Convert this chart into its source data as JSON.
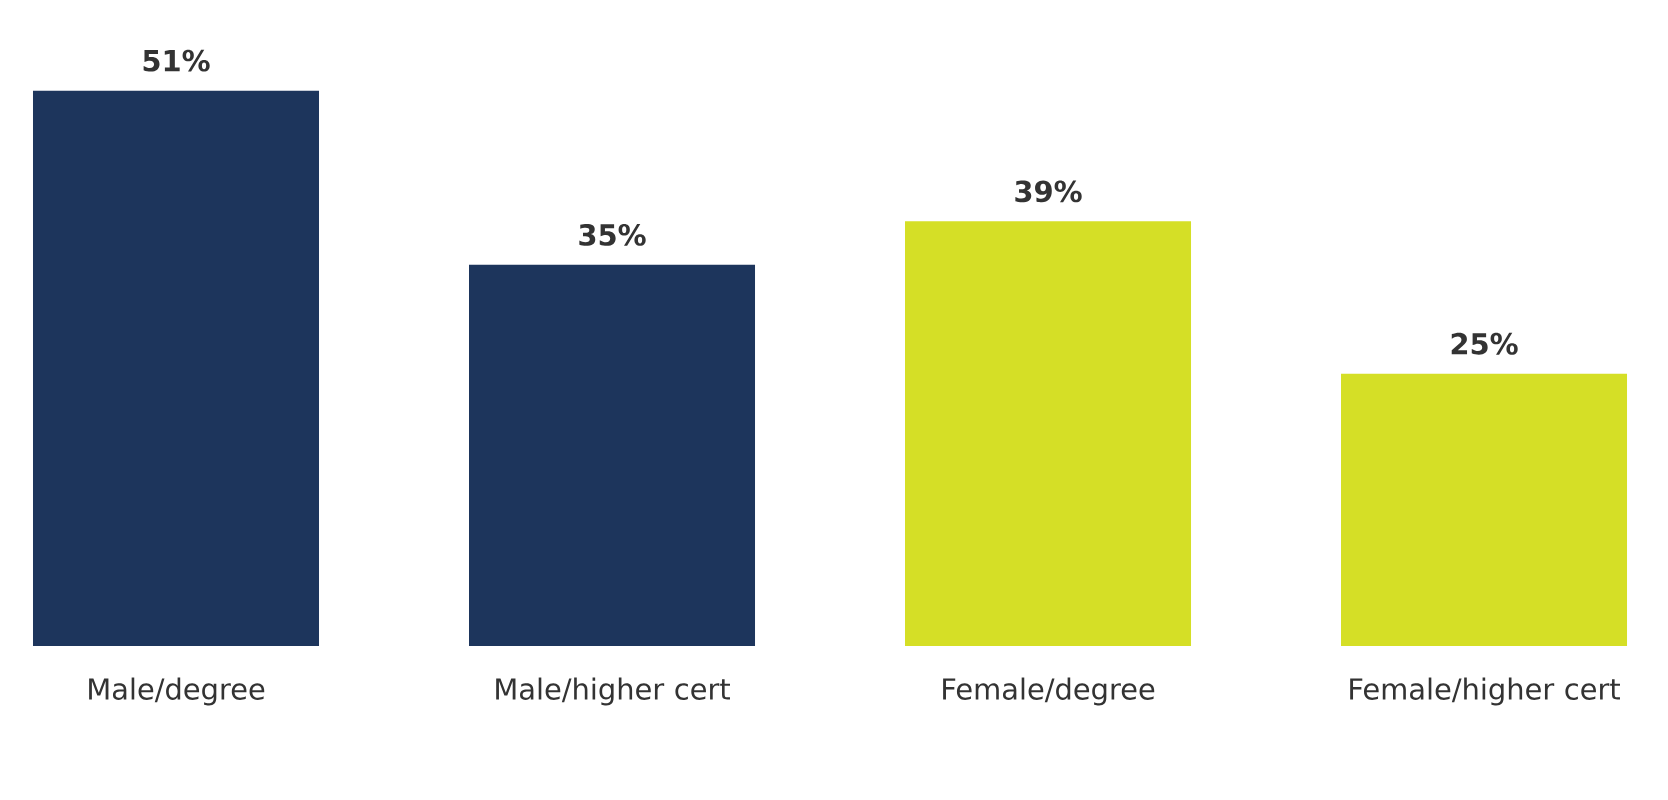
{
  "chart_data": {
    "type": "bar",
    "categories": [
      "Male/degree",
      "Male/higher cert",
      "Female/degree",
      "Female/higher cert"
    ],
    "values": [
      51,
      35,
      39,
      25
    ],
    "value_labels": [
      "51%",
      "35%",
      "39%",
      "25%"
    ],
    "colors": [
      "#1d355c",
      "#1d355c",
      "#d5df26",
      "#d5df26"
    ]
  }
}
